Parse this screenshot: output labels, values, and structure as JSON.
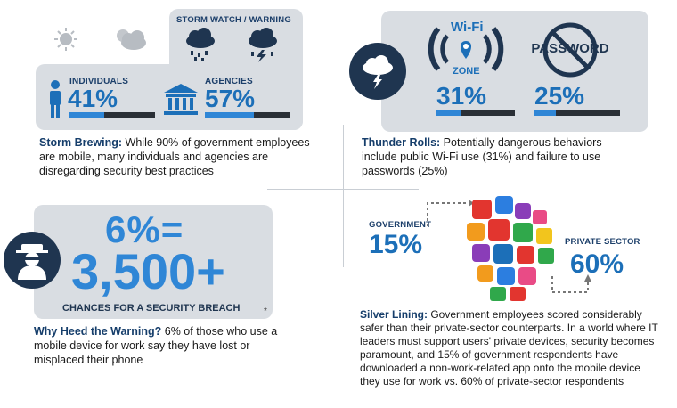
{
  "storm": {
    "watch_label": "STORM WATCH / WARNING",
    "individuals_label": "INDIVIDUALS",
    "individuals_pct": "41%",
    "individuals_value": 0.41,
    "agencies_label": "AGENCIES",
    "agencies_pct": "57%",
    "agencies_value": 0.57,
    "caption_title": "Storm Brewing:",
    "caption_text": " While 90% of government employees are mobile, many individuals and agencies are disregarding security best practices"
  },
  "thunder": {
    "wifi_text": "Wi-Fi",
    "zone_text": "ZONE",
    "password_text": "PASSWORD",
    "wifi_pct": "31%",
    "wifi_value": 0.31,
    "password_pct": "25%",
    "password_value": 0.25,
    "caption_title": "Thunder Rolls:",
    "caption_text": " Potentially dangerous behaviors include public Wi-Fi use (31%) and failure to use passwords (25%)"
  },
  "breach": {
    "line1": "6%=",
    "line2": "3,500+",
    "banner": "CHANCES FOR A SECURITY BREACH",
    "asterisk": "*",
    "caption_title": "Why Heed the Warning?",
    "caption_text": " 6% of those who use a mobile device for work say they have lost or misplaced their phone"
  },
  "lining": {
    "gov_label": "GOVERNMENT",
    "gov_pct": "15%",
    "private_label": "PRIVATE SECTOR",
    "private_pct": "60%",
    "caption_title": "Silver Lining:",
    "caption_text": " Government employees scored considerably safer than their private-sector counterparts. In a world where IT leaders must support users' private devices, security becomes paramount, and 15% of government respondents have downloaded a non-work-related app onto the mobile device they use for work vs. 60% of private-sector respondents"
  },
  "colors": {
    "accent_blue": "#1c6fb8",
    "navy": "#163e6b",
    "panel_gray": "#d9dde2"
  }
}
